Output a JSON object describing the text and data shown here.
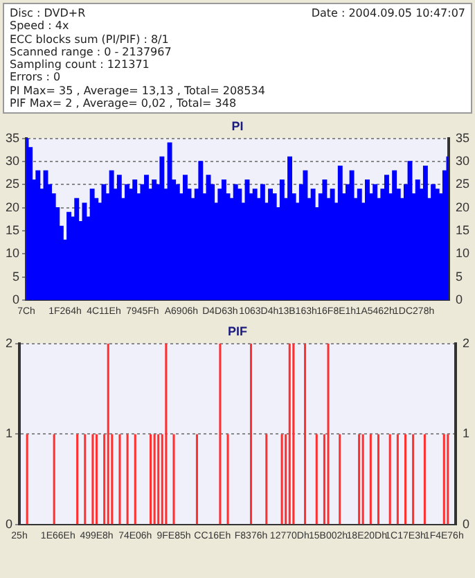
{
  "chart_data": [
    {
      "type": "bar",
      "title": "PI",
      "annotations": [
        "Date : 2004.09.05 10:47:07",
        "Disc : DVD+R",
        "Speed : 4x",
        "ECC blocks sum (PI/PIF) : 8/1",
        "Scanned range : 0 - 2137967",
        "Sampling count : 121371",
        "Errors : 0",
        "PI Max= 35 , Average= 13,13 , Total= 208534",
        "PIF Max= 2 , Average= 0,02 , Total= 348"
      ],
      "categories": [
        "7Ch",
        null,
        null,
        null,
        null,
        null,
        null,
        null,
        null,
        null,
        "1F264h",
        null,
        null,
        null,
        null,
        null,
        null,
        null,
        null,
        null,
        "4C11Eh",
        null,
        null,
        null,
        null,
        null,
        null,
        null,
        null,
        null,
        "7945Fh",
        null,
        null,
        null,
        null,
        null,
        null,
        null,
        null,
        null,
        "A6906h",
        null,
        null,
        null,
        null,
        null,
        null,
        null,
        null,
        null,
        "D4D63h",
        null,
        null,
        null,
        null,
        null,
        null,
        null,
        null,
        null,
        "1063D4h",
        null,
        null,
        null,
        null,
        null,
        null,
        null,
        null,
        null,
        "13B163h",
        null,
        null,
        null,
        null,
        null,
        null,
        null,
        null,
        null,
        "16F8E1h",
        null,
        null,
        null,
        null,
        null,
        null,
        null,
        null,
        null,
        "1A5462h",
        null,
        null,
        null,
        null,
        null,
        null,
        null,
        null,
        null,
        "1DC278h",
        null,
        null,
        null,
        null,
        null,
        null,
        null,
        null,
        null
      ],
      "series": [
        {
          "color": "#0000ff",
          "values": [
            35,
            33,
            26,
            28,
            24,
            28,
            25,
            23,
            20,
            16,
            13,
            19,
            18,
            22,
            17,
            21,
            18,
            24,
            22,
            21,
            25,
            23,
            28,
            24,
            27,
            22,
            25,
            24,
            26,
            23,
            25,
            27,
            24,
            26,
            25,
            31,
            24,
            34,
            26,
            25,
            23,
            27,
            24,
            22,
            24,
            30,
            23,
            27,
            25,
            21,
            24,
            26,
            23,
            22,
            25,
            24,
            21,
            26,
            23,
            24,
            22,
            25,
            21,
            24,
            23,
            20,
            26,
            22,
            31,
            23,
            21,
            25,
            28,
            22,
            24,
            20,
            23,
            26,
            22,
            24,
            21,
            29,
            23,
            25,
            28,
            22,
            24,
            21,
            26,
            23,
            25,
            22,
            24,
            27,
            23,
            28,
            24,
            22,
            25,
            30,
            23,
            26,
            24,
            29,
            22,
            25,
            24,
            23,
            28,
            31
          ]
        }
      ],
      "ylim": [
        0,
        35
      ],
      "yticks": [
        0,
        5,
        10,
        15,
        20,
        25,
        30,
        35
      ],
      "y2lim": [
        0,
        35
      ],
      "y2ticks": [
        0,
        5,
        10,
        15,
        20,
        25,
        30,
        35
      ],
      "grid": "y",
      "legend": false
    },
    {
      "type": "bar",
      "title": "PIF",
      "categories": [
        "25h",
        null,
        null,
        null,
        null,
        null,
        null,
        null,
        null,
        null,
        "1E66Eh",
        null,
        null,
        null,
        null,
        null,
        null,
        null,
        null,
        null,
        "499E8h",
        null,
        null,
        null,
        null,
        null,
        null,
        null,
        null,
        null,
        "74E06h",
        null,
        null,
        null,
        null,
        null,
        null,
        null,
        null,
        null,
        "9FE85h",
        null,
        null,
        null,
        null,
        null,
        null,
        null,
        null,
        null,
        "CC16Eh",
        null,
        null,
        null,
        null,
        null,
        null,
        null,
        null,
        null,
        "F8376h",
        null,
        null,
        null,
        null,
        null,
        null,
        null,
        null,
        null,
        "12770Dh",
        null,
        null,
        null,
        null,
        null,
        null,
        null,
        null,
        null,
        "15B002h",
        null,
        null,
        null,
        null,
        null,
        null,
        null,
        null,
        null,
        "18E20Dh",
        null,
        null,
        null,
        null,
        null,
        null,
        null,
        null,
        null,
        "1C17E3h",
        null,
        null,
        null,
        null,
        null,
        null,
        null,
        null,
        null,
        "1F4E76h",
        null,
        null,
        null
      ],
      "series": [
        {
          "color": "#ff3030",
          "values": [
            0,
            0,
            1,
            0,
            0,
            0,
            0,
            0,
            0,
            1,
            0,
            0,
            0,
            0,
            0,
            1,
            0,
            1,
            0,
            1,
            1,
            0,
            1,
            2,
            1,
            0,
            1,
            0,
            1,
            0,
            1,
            0,
            0,
            0,
            1,
            1,
            1,
            1,
            2,
            0,
            1,
            0,
            0,
            0,
            0,
            0,
            1,
            0,
            0,
            0,
            0,
            0,
            2,
            0,
            1,
            0,
            0,
            0,
            0,
            0,
            2,
            0,
            0,
            0,
            1,
            0,
            0,
            0,
            1,
            1,
            2,
            2,
            0,
            0,
            2,
            0,
            0,
            1,
            0,
            1,
            2,
            0,
            0,
            1,
            0,
            0,
            0,
            0,
            1,
            1,
            0,
            1,
            0,
            1,
            0,
            0,
            1,
            0,
            1,
            0,
            1,
            0,
            1,
            0,
            0,
            1,
            0,
            0,
            0,
            0,
            1,
            1,
            0,
            0
          ]
        }
      ],
      "ylim": [
        0,
        2
      ],
      "yticks": [
        0,
        1,
        2
      ],
      "y2lim": [
        0,
        2
      ],
      "y2ticks": [
        0,
        1,
        2
      ],
      "grid": "y",
      "legend": false
    }
  ]
}
